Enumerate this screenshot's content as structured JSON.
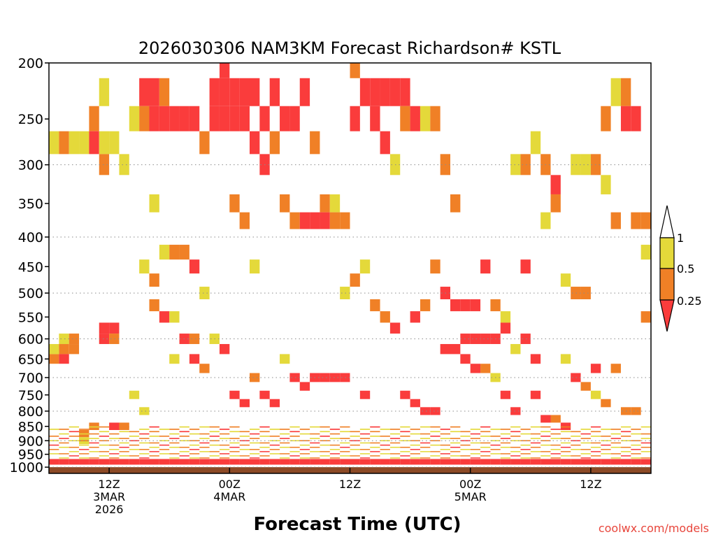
{
  "chart_data": {
    "type": "heatmap",
    "title": "2026030306 NAM3KM Forecast Richardson# KSTL",
    "xlabel": "Forecast Time (UTC)",
    "ylabel": "",
    "x_range_hours": [
      0,
      60
    ],
    "y_range_hpa": [
      200,
      1025
    ],
    "y_scale": "log-pressure (inverted)",
    "y_ticks": [
      200,
      250,
      300,
      350,
      400,
      450,
      500,
      550,
      600,
      650,
      700,
      750,
      800,
      850,
      900,
      950,
      1000
    ],
    "y_tick_labels": [
      "200",
      "250",
      "300",
      "350",
      "400",
      "450",
      "500",
      "550",
      "600",
      "650",
      "700",
      "750",
      "800",
      "850",
      "900",
      "950",
      "1000"
    ],
    "y_gridlines_hpa": [
      300,
      400,
      500,
      600,
      700,
      800,
      900,
      1000
    ],
    "x_ticks": [
      {
        "hour": 6,
        "labels": [
          "12Z",
          "3MAR",
          "2026"
        ]
      },
      {
        "hour": 18,
        "labels": [
          "00Z",
          "4MAR"
        ]
      },
      {
        "hour": 30,
        "labels": [
          "12Z"
        ]
      },
      {
        "hour": 42,
        "labels": [
          "00Z",
          "5MAR"
        ]
      },
      {
        "hour": 54,
        "labels": [
          "12Z"
        ]
      }
    ],
    "colorbar": {
      "placement": "right",
      "labels": [
        "1",
        "0.5",
        "0.25"
      ],
      "bins": [
        {
          "range": "0.5-1",
          "color": "#e4d93a"
        },
        {
          "range": "0.25-0.5",
          "color": "#f08026"
        },
        {
          "range": "<0.25",
          "color": "#fa3c3c"
        }
      ]
    },
    "surface": {
      "pressure_hpa": 1000,
      "color": "#8c4a26"
    },
    "categories": [
      "Ri 0.5-1",
      "Ri 0.25-0.5",
      "Ri <0.25"
    ],
    "cell_size": {
      "hours": 1,
      "hpa_levels": 25
    },
    "cells": [
      {
        "t": 0,
        "p": 275,
        "v": 1
      },
      {
        "t": 0,
        "p": 650,
        "v": 2
      },
      {
        "t": 0,
        "p": 625,
        "v": 1
      },
      {
        "t": 1,
        "p": 275,
        "v": 2
      },
      {
        "t": 1,
        "p": 600,
        "v": 1
      },
      {
        "t": 1,
        "p": 625,
        "v": 2
      },
      {
        "t": 1,
        "p": 650,
        "v": 3
      },
      {
        "t": 2,
        "p": 275,
        "v": 1
      },
      {
        "t": 2,
        "p": 600,
        "v": 2
      },
      {
        "t": 2,
        "p": 625,
        "v": 2
      },
      {
        "t": 3,
        "p": 275,
        "v": 1
      },
      {
        "t": 3,
        "p": 875,
        "v": 2
      },
      {
        "t": 3,
        "p": 900,
        "v": 1
      },
      {
        "t": 4,
        "p": 250,
        "v": 2
      },
      {
        "t": 4,
        "p": 275,
        "v": 3
      },
      {
        "t": 4,
        "p": 850,
        "v": 2
      },
      {
        "t": 5,
        "p": 225,
        "v": 1
      },
      {
        "t": 5,
        "p": 275,
        "v": 1
      },
      {
        "t": 5,
        "p": 300,
        "v": 2
      },
      {
        "t": 5,
        "p": 575,
        "v": 3
      },
      {
        "t": 5,
        "p": 600,
        "v": 3
      },
      {
        "t": 6,
        "p": 275,
        "v": 1
      },
      {
        "t": 6,
        "p": 575,
        "v": 3
      },
      {
        "t": 6,
        "p": 600,
        "v": 2
      },
      {
        "t": 6,
        "p": 850,
        "v": 3
      },
      {
        "t": 7,
        "p": 300,
        "v": 1
      },
      {
        "t": 7,
        "p": 850,
        "v": 2
      },
      {
        "t": 8,
        "p": 250,
        "v": 1
      },
      {
        "t": 8,
        "p": 750,
        "v": 1
      },
      {
        "t": 9,
        "p": 225,
        "v": 3
      },
      {
        "t": 9,
        "p": 250,
        "v": 2
      },
      {
        "t": 9,
        "p": 450,
        "v": 1
      },
      {
        "t": 9,
        "p": 800,
        "v": 1
      },
      {
        "t": 10,
        "p": 225,
        "v": 3
      },
      {
        "t": 10,
        "p": 250,
        "v": 3
      },
      {
        "t": 10,
        "p": 350,
        "v": 1
      },
      {
        "t": 10,
        "p": 475,
        "v": 2
      },
      {
        "t": 10,
        "p": 525,
        "v": 2
      },
      {
        "t": 11,
        "p": 225,
        "v": 2
      },
      {
        "t": 11,
        "p": 250,
        "v": 3
      },
      {
        "t": 11,
        "p": 425,
        "v": 1
      },
      {
        "t": 11,
        "p": 550,
        "v": 3
      },
      {
        "t": 12,
        "p": 250,
        "v": 3
      },
      {
        "t": 12,
        "p": 425,
        "v": 2
      },
      {
        "t": 12,
        "p": 550,
        "v": 1
      },
      {
        "t": 12,
        "p": 650,
        "v": 1
      },
      {
        "t": 13,
        "p": 250,
        "v": 3
      },
      {
        "t": 13,
        "p": 425,
        "v": 2
      },
      {
        "t": 13,
        "p": 600,
        "v": 3
      },
      {
        "t": 14,
        "p": 250,
        "v": 3
      },
      {
        "t": 14,
        "p": 450,
        "v": 3
      },
      {
        "t": 14,
        "p": 600,
        "v": 2
      },
      {
        "t": 14,
        "p": 650,
        "v": 3
      },
      {
        "t": 15,
        "p": 275,
        "v": 2
      },
      {
        "t": 15,
        "p": 500,
        "v": 1
      },
      {
        "t": 15,
        "p": 675,
        "v": 2
      },
      {
        "t": 16,
        "p": 225,
        "v": 3
      },
      {
        "t": 16,
        "p": 250,
        "v": 3
      },
      {
        "t": 16,
        "p": 600,
        "v": 1
      },
      {
        "t": 17,
        "p": 200,
        "v": 3
      },
      {
        "t": 17,
        "p": 225,
        "v": 3
      },
      {
        "t": 17,
        "p": 250,
        "v": 3
      },
      {
        "t": 17,
        "p": 625,
        "v": 3
      },
      {
        "t": 18,
        "p": 225,
        "v": 3
      },
      {
        "t": 18,
        "p": 250,
        "v": 3
      },
      {
        "t": 18,
        "p": 350,
        "v": 2
      },
      {
        "t": 18,
        "p": 750,
        "v": 3
      },
      {
        "t": 19,
        "p": 225,
        "v": 3
      },
      {
        "t": 19,
        "p": 250,
        "v": 3
      },
      {
        "t": 19,
        "p": 375,
        "v": 2
      },
      {
        "t": 19,
        "p": 775,
        "v": 3
      },
      {
        "t": 20,
        "p": 225,
        "v": 3
      },
      {
        "t": 20,
        "p": 275,
        "v": 3
      },
      {
        "t": 20,
        "p": 450,
        "v": 1
      },
      {
        "t": 20,
        "p": 700,
        "v": 2
      },
      {
        "t": 21,
        "p": 250,
        "v": 3
      },
      {
        "t": 21,
        "p": 300,
        "v": 3
      },
      {
        "t": 21,
        "p": 750,
        "v": 3
      },
      {
        "t": 22,
        "p": 225,
        "v": 3
      },
      {
        "t": 22,
        "p": 275,
        "v": 2
      },
      {
        "t": 22,
        "p": 775,
        "v": 3
      },
      {
        "t": 23,
        "p": 250,
        "v": 3
      },
      {
        "t": 23,
        "p": 350,
        "v": 2
      },
      {
        "t": 23,
        "p": 650,
        "v": 1
      },
      {
        "t": 24,
        "p": 250,
        "v": 3
      },
      {
        "t": 24,
        "p": 375,
        "v": 2
      },
      {
        "t": 24,
        "p": 700,
        "v": 3
      },
      {
        "t": 25,
        "p": 225,
        "v": 3
      },
      {
        "t": 25,
        "p": 375,
        "v": 3
      },
      {
        "t": 25,
        "p": 725,
        "v": 3
      },
      {
        "t": 26,
        "p": 275,
        "v": 2
      },
      {
        "t": 26,
        "p": 375,
        "v": 3
      },
      {
        "t": 26,
        "p": 700,
        "v": 3
      },
      {
        "t": 27,
        "p": 350,
        "v": 2
      },
      {
        "t": 27,
        "p": 375,
        "v": 3
      },
      {
        "t": 27,
        "p": 700,
        "v": 3
      },
      {
        "t": 28,
        "p": 350,
        "v": 1
      },
      {
        "t": 28,
        "p": 375,
        "v": 2
      },
      {
        "t": 28,
        "p": 700,
        "v": 3
      },
      {
        "t": 29,
        "p": 375,
        "v": 2
      },
      {
        "t": 29,
        "p": 500,
        "v": 1
      },
      {
        "t": 29,
        "p": 700,
        "v": 3
      },
      {
        "t": 30,
        "p": 200,
        "v": 2
      },
      {
        "t": 30,
        "p": 250,
        "v": 3
      },
      {
        "t": 30,
        "p": 475,
        "v": 2
      },
      {
        "t": 31,
        "p": 225,
        "v": 3
      },
      {
        "t": 31,
        "p": 450,
        "v": 1
      },
      {
        "t": 31,
        "p": 750,
        "v": 3
      },
      {
        "t": 32,
        "p": 225,
        "v": 3
      },
      {
        "t": 32,
        "p": 250,
        "v": 3
      },
      {
        "t": 32,
        "p": 525,
        "v": 2
      },
      {
        "t": 33,
        "p": 225,
        "v": 3
      },
      {
        "t": 33,
        "p": 275,
        "v": 3
      },
      {
        "t": 33,
        "p": 550,
        "v": 2
      },
      {
        "t": 34,
        "p": 225,
        "v": 3
      },
      {
        "t": 34,
        "p": 300,
        "v": 1
      },
      {
        "t": 34,
        "p": 575,
        "v": 3
      },
      {
        "t": 35,
        "p": 225,
        "v": 3
      },
      {
        "t": 35,
        "p": 250,
        "v": 2
      },
      {
        "t": 35,
        "p": 750,
        "v": 3
      },
      {
        "t": 36,
        "p": 250,
        "v": 3
      },
      {
        "t": 36,
        "p": 550,
        "v": 3
      },
      {
        "t": 36,
        "p": 775,
        "v": 3
      },
      {
        "t": 37,
        "p": 250,
        "v": 1
      },
      {
        "t": 37,
        "p": 525,
        "v": 2
      },
      {
        "t": 37,
        "p": 800,
        "v": 3
      },
      {
        "t": 38,
        "p": 250,
        "v": 2
      },
      {
        "t": 38,
        "p": 450,
        "v": 2
      },
      {
        "t": 38,
        "p": 800,
        "v": 3
      },
      {
        "t": 39,
        "p": 300,
        "v": 2
      },
      {
        "t": 39,
        "p": 500,
        "v": 3
      },
      {
        "t": 39,
        "p": 625,
        "v": 3
      },
      {
        "t": 40,
        "p": 350,
        "v": 2
      },
      {
        "t": 40,
        "p": 525,
        "v": 3
      },
      {
        "t": 40,
        "p": 625,
        "v": 3
      },
      {
        "t": 41,
        "p": 525,
        "v": 3
      },
      {
        "t": 41,
        "p": 600,
        "v": 3
      },
      {
        "t": 41,
        "p": 650,
        "v": 3
      },
      {
        "t": 42,
        "p": 525,
        "v": 3
      },
      {
        "t": 42,
        "p": 600,
        "v": 3
      },
      {
        "t": 42,
        "p": 675,
        "v": 3
      },
      {
        "t": 43,
        "p": 600,
        "v": 3
      },
      {
        "t": 43,
        "p": 450,
        "v": 3
      },
      {
        "t": 43,
        "p": 675,
        "v": 2
      },
      {
        "t": 44,
        "p": 525,
        "v": 2
      },
      {
        "t": 44,
        "p": 600,
        "v": 3
      },
      {
        "t": 44,
        "p": 700,
        "v": 1
      },
      {
        "t": 45,
        "p": 550,
        "v": 1
      },
      {
        "t": 45,
        "p": 575,
        "v": 3
      },
      {
        "t": 45,
        "p": 750,
        "v": 3
      },
      {
        "t": 46,
        "p": 300,
        "v": 1
      },
      {
        "t": 46,
        "p": 625,
        "v": 1
      },
      {
        "t": 46,
        "p": 800,
        "v": 3
      },
      {
        "t": 47,
        "p": 300,
        "v": 2
      },
      {
        "t": 47,
        "p": 450,
        "v": 3
      },
      {
        "t": 47,
        "p": 600,
        "v": 3
      },
      {
        "t": 48,
        "p": 275,
        "v": 1
      },
      {
        "t": 48,
        "p": 650,
        "v": 3
      },
      {
        "t": 48,
        "p": 750,
        "v": 3
      },
      {
        "t": 49,
        "p": 300,
        "v": 2
      },
      {
        "t": 49,
        "p": 375,
        "v": 1
      },
      {
        "t": 49,
        "p": 825,
        "v": 3
      },
      {
        "t": 50,
        "p": 325,
        "v": 3
      },
      {
        "t": 50,
        "p": 350,
        "v": 2
      },
      {
        "t": 50,
        "p": 825,
        "v": 2
      },
      {
        "t": 51,
        "p": 475,
        "v": 1
      },
      {
        "t": 51,
        "p": 650,
        "v": 1
      },
      {
        "t": 51,
        "p": 850,
        "v": 3
      },
      {
        "t": 52,
        "p": 300,
        "v": 1
      },
      {
        "t": 52,
        "p": 500,
        "v": 2
      },
      {
        "t": 52,
        "p": 700,
        "v": 3
      },
      {
        "t": 53,
        "p": 300,
        "v": 1
      },
      {
        "t": 53,
        "p": 500,
        "v": 2
      },
      {
        "t": 53,
        "p": 725,
        "v": 2
      },
      {
        "t": 54,
        "p": 300,
        "v": 2
      },
      {
        "t": 54,
        "p": 675,
        "v": 3
      },
      {
        "t": 54,
        "p": 750,
        "v": 1
      },
      {
        "t": 55,
        "p": 250,
        "v": 2
      },
      {
        "t": 55,
        "p": 325,
        "v": 1
      },
      {
        "t": 55,
        "p": 775,
        "v": 2
      },
      {
        "t": 56,
        "p": 225,
        "v": 1
      },
      {
        "t": 56,
        "p": 375,
        "v": 2
      },
      {
        "t": 56,
        "p": 675,
        "v": 2
      },
      {
        "t": 57,
        "p": 225,
        "v": 2
      },
      {
        "t": 57,
        "p": 250,
        "v": 3
      },
      {
        "t": 57,
        "p": 800,
        "v": 2
      },
      {
        "t": 58,
        "p": 250,
        "v": 3
      },
      {
        "t": 58,
        "p": 375,
        "v": 2
      },
      {
        "t": 58,
        "p": 800,
        "v": 2
      },
      {
        "t": 59,
        "p": 375,
        "v": 2
      },
      {
        "t": 59,
        "p": 425,
        "v": 1
      },
      {
        "t": 59,
        "p": 550,
        "v": 2
      }
    ],
    "low_level_band": {
      "p_top_hpa": 850,
      "p_bottom_hpa": 990,
      "note_levels": [
        875,
        900,
        925,
        950,
        975
      ]
    }
  },
  "credit": "coolwx.com/models"
}
